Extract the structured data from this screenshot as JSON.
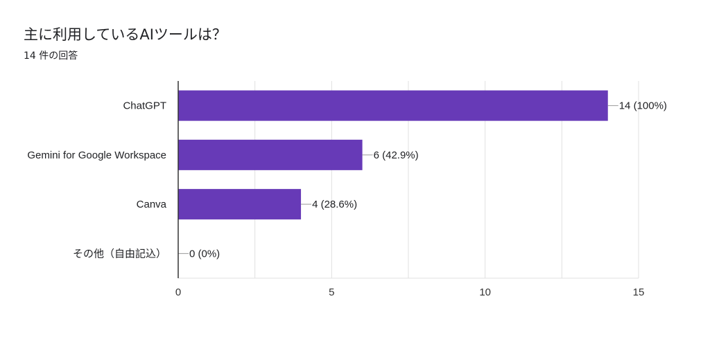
{
  "header": {
    "title": "主に利用しているAIツールは？",
    "subtitle": "14 件の回答"
  },
  "colors": {
    "bar": "#673ab7",
    "grid": "#e0e0e0",
    "axis": "#333333",
    "text": "#202124"
  },
  "chart_data": {
    "type": "bar",
    "orientation": "horizontal",
    "categories": [
      "ChatGPT",
      "Gemini for Google Workspace",
      "Canva",
      "その他（自由記込）"
    ],
    "values": [
      14,
      6,
      4,
      0
    ],
    "data_labels": [
      "14 (100%)",
      "6 (42.9%)",
      "4 (28.6%)",
      "0 (0%)"
    ],
    "xlim": [
      0,
      15
    ],
    "xticks": [
      0,
      5,
      10,
      15
    ],
    "grid": true,
    "legend": "none"
  }
}
